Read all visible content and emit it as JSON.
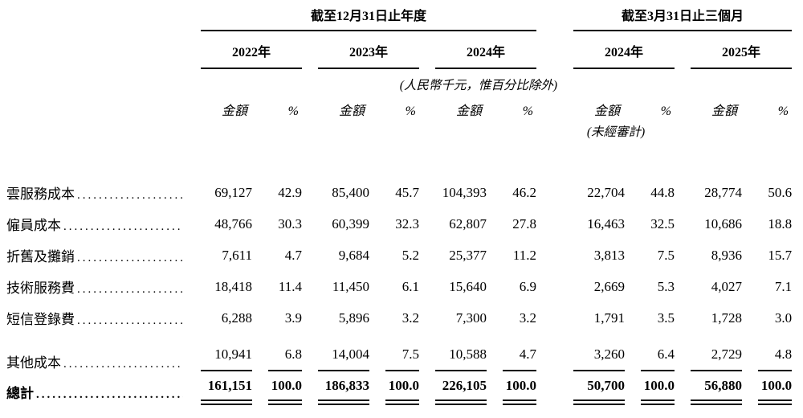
{
  "table": {
    "group_headers": {
      "annual": "截至12月31日止年度",
      "quarterly": "截至3月31日止三個月"
    },
    "year_headers": [
      "2022年",
      "2023年",
      "2024年",
      "2024年",
      "2025年"
    ],
    "unit_note": "(人民幣千元，惟百分比除外)",
    "unaudited_note": "(未經審計)",
    "amount_label": "金額",
    "percent_label": "%",
    "dot_leader": "......................................................",
    "rows": [
      {
        "label": "雲服務成本",
        "values": [
          "69,127",
          "42.9",
          "85,400",
          "45.7",
          "104,393",
          "46.2",
          "22,704",
          "44.8",
          "28,774",
          "50.6"
        ]
      },
      {
        "label": "僱員成本",
        "values": [
          "48,766",
          "30.3",
          "60,399",
          "32.3",
          "62,807",
          "27.8",
          "16,463",
          "32.5",
          "10,686",
          "18.8"
        ]
      },
      {
        "label": "折舊及攤銷",
        "values": [
          "7,611",
          "4.7",
          "9,684",
          "5.2",
          "25,377",
          "11.2",
          "3,813",
          "7.5",
          "8,936",
          "15.7"
        ]
      },
      {
        "label": "技術服務費",
        "values": [
          "18,418",
          "11.4",
          "11,450",
          "6.1",
          "15,640",
          "6.9",
          "2,669",
          "5.3",
          "4,027",
          "7.1"
        ]
      },
      {
        "label": "短信登錄費",
        "values": [
          "6,288",
          "3.9",
          "5,896",
          "3.2",
          "7,300",
          "3.2",
          "1,791",
          "3.5",
          "1,728",
          "3.0"
        ]
      },
      {
        "label": "其他成本",
        "values": [
          "10,941",
          "6.8",
          "14,004",
          "7.5",
          "10,588",
          "4.7",
          "3,260",
          "6.4",
          "2,729",
          "4.8"
        ]
      }
    ],
    "total_row": {
      "label": "總計",
      "values": [
        "161,151",
        "100.0",
        "186,833",
        "100.0",
        "226,105",
        "100.0",
        "50,700",
        "100.0",
        "56,880",
        "100.0"
      ]
    }
  }
}
